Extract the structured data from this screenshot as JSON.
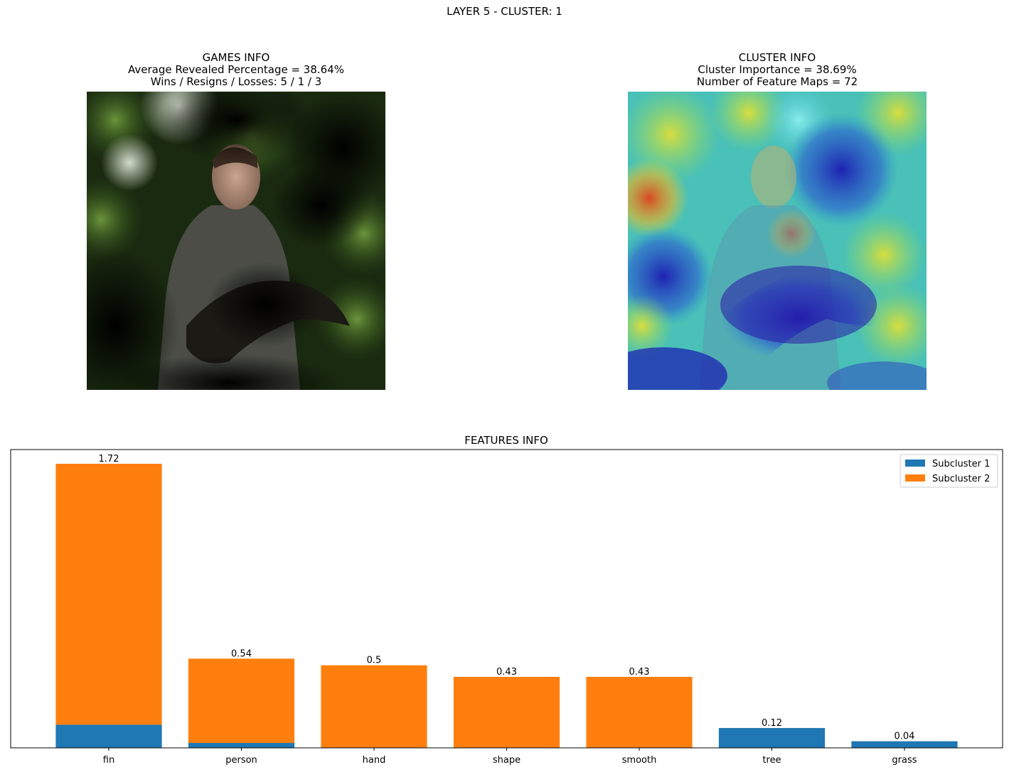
{
  "figure": {
    "suptitle": "LAYER 5 - CLUSTER: 1"
  },
  "games_info": {
    "title": "GAMES INFO",
    "line1": "Average Revealed Percentage = 38.64%",
    "line2": "Wins / Resigns / Losses: 5 / 1 / 3"
  },
  "cluster_info": {
    "title": "CLUSTER INFO",
    "line1": "Cluster Importance = 38.69%",
    "line2": "Number of Feature Maps = 72"
  },
  "chart_data": {
    "type": "bar",
    "stacked": true,
    "title": "FEATURES INFO",
    "xlabel": "",
    "ylabel": "",
    "categories": [
      "fin",
      "person",
      "hand",
      "shape",
      "smooth",
      "tree",
      "grass"
    ],
    "series": [
      {
        "name": "Subcluster 1",
        "color": "#1f77b4",
        "values": [
          0.14,
          0.03,
          0.0,
          0.0,
          0.0,
          0.12,
          0.04
        ]
      },
      {
        "name": "Subcluster 2",
        "color": "#ff7f0e",
        "values": [
          1.58,
          0.51,
          0.5,
          0.43,
          0.43,
          0.0,
          0.0
        ]
      }
    ],
    "totals": [
      1.72,
      0.54,
      0.5,
      0.43,
      0.43,
      0.12,
      0.04
    ],
    "total_labels": [
      "1.72",
      "0.54",
      "0.5",
      "0.43",
      "0.43",
      "0.12",
      "0.04"
    ],
    "ylim": [
      0,
      1.72
    ],
    "y_ticks_visible": false,
    "grid": false,
    "legend_position": "top-right"
  }
}
